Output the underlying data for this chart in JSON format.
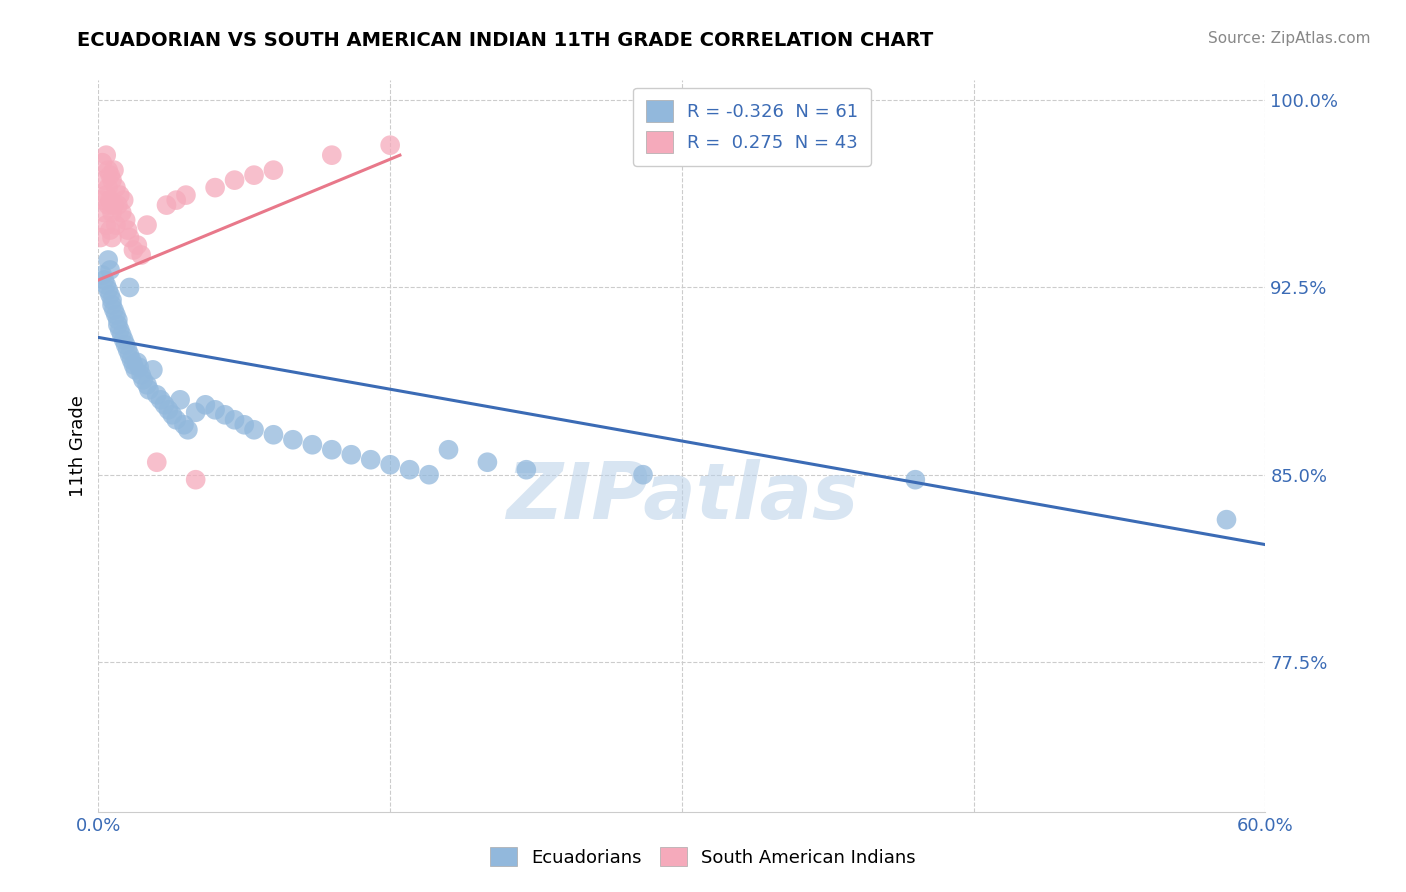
{
  "title": "ECUADORIAN VS SOUTH AMERICAN INDIAN 11TH GRADE CORRELATION CHART",
  "source": "Source: ZipAtlas.com",
  "ylabel": "11th Grade",
  "xmin": 0.0,
  "xmax": 0.6,
  "ymin": 0.715,
  "ymax": 1.008,
  "yticks": [
    0.775,
    0.85,
    0.925,
    1.0
  ],
  "ytick_labels": [
    "77.5%",
    "85.0%",
    "92.5%",
    "100.0%"
  ],
  "xticks": [
    0.0,
    0.15,
    0.3,
    0.45,
    0.6
  ],
  "xtick_labels": [
    "0.0%",
    "",
    "",
    "",
    "60.0%"
  ],
  "legend_R_blue": "-0.326",
  "legend_N_blue": "61",
  "legend_R_pink": "0.275",
  "legend_N_pink": "43",
  "blue_color": "#92B8DC",
  "pink_color": "#F5AABB",
  "blue_line_color": "#3B6BB5",
  "pink_line_color": "#E8788A",
  "watermark": "ZIPatlas",
  "blue_line_x0": 0.0,
  "blue_line_x1": 0.6,
  "blue_line_y0": 0.905,
  "blue_line_y1": 0.822,
  "pink_line_x0": 0.0,
  "pink_line_x1": 0.155,
  "pink_line_y0": 0.928,
  "pink_line_y1": 0.978,
  "blue_scatter_x": [
    0.002,
    0.003,
    0.004,
    0.005,
    0.005,
    0.006,
    0.006,
    0.007,
    0.007,
    0.008,
    0.009,
    0.01,
    0.01,
    0.011,
    0.012,
    0.013,
    0.014,
    0.015,
    0.016,
    0.016,
    0.017,
    0.018,
    0.019,
    0.02,
    0.021,
    0.022,
    0.023,
    0.025,
    0.026,
    0.028,
    0.03,
    0.032,
    0.034,
    0.036,
    0.038,
    0.04,
    0.042,
    0.044,
    0.046,
    0.05,
    0.055,
    0.06,
    0.065,
    0.07,
    0.075,
    0.08,
    0.09,
    0.1,
    0.11,
    0.12,
    0.13,
    0.14,
    0.15,
    0.16,
    0.17,
    0.18,
    0.2,
    0.22,
    0.28,
    0.42,
    0.58
  ],
  "blue_scatter_y": [
    0.93,
    0.928,
    0.926,
    0.924,
    0.936,
    0.932,
    0.922,
    0.918,
    0.92,
    0.916,
    0.914,
    0.912,
    0.91,
    0.908,
    0.906,
    0.904,
    0.902,
    0.9,
    0.898,
    0.925,
    0.896,
    0.894,
    0.892,
    0.895,
    0.893,
    0.89,
    0.888,
    0.886,
    0.884,
    0.892,
    0.882,
    0.88,
    0.878,
    0.876,
    0.874,
    0.872,
    0.88,
    0.87,
    0.868,
    0.875,
    0.878,
    0.876,
    0.874,
    0.872,
    0.87,
    0.868,
    0.866,
    0.864,
    0.862,
    0.86,
    0.858,
    0.856,
    0.854,
    0.852,
    0.85,
    0.86,
    0.855,
    0.852,
    0.85,
    0.848,
    0.832
  ],
  "pink_scatter_x": [
    0.001,
    0.002,
    0.002,
    0.003,
    0.003,
    0.004,
    0.004,
    0.004,
    0.005,
    0.005,
    0.005,
    0.006,
    0.006,
    0.006,
    0.007,
    0.007,
    0.007,
    0.008,
    0.008,
    0.009,
    0.009,
    0.01,
    0.011,
    0.012,
    0.013,
    0.014,
    0.015,
    0.016,
    0.018,
    0.02,
    0.022,
    0.025,
    0.03,
    0.035,
    0.04,
    0.045,
    0.05,
    0.06,
    0.07,
    0.08,
    0.09,
    0.12,
    0.15
  ],
  "pink_scatter_y": [
    0.945,
    0.96,
    0.975,
    0.955,
    0.968,
    0.95,
    0.962,
    0.978,
    0.958,
    0.965,
    0.972,
    0.948,
    0.96,
    0.97,
    0.945,
    0.955,
    0.968,
    0.958,
    0.972,
    0.95,
    0.965,
    0.958,
    0.962,
    0.955,
    0.96,
    0.952,
    0.948,
    0.945,
    0.94,
    0.942,
    0.938,
    0.95,
    0.855,
    0.958,
    0.96,
    0.962,
    0.848,
    0.965,
    0.968,
    0.97,
    0.972,
    0.978,
    0.982
  ]
}
